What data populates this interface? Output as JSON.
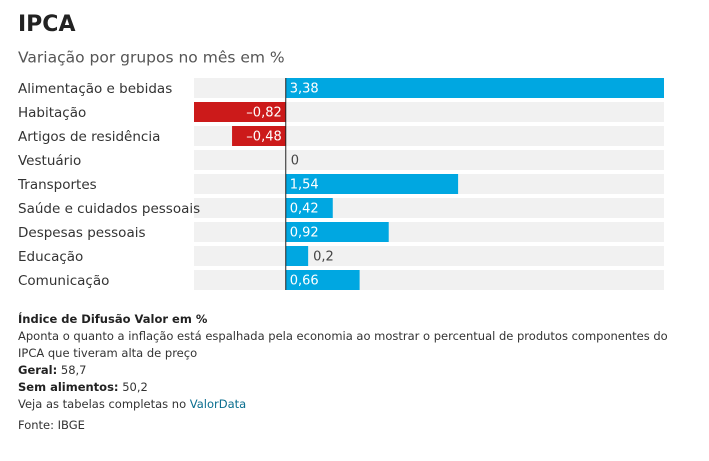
{
  "chart_data": {
    "type": "hbar",
    "title": "IPCA",
    "subtitle": "Variação por grupos no mês em %",
    "categories": [
      "Alimentação e bebidas",
      "Habitação",
      "Artigos de residência",
      "Vestuário",
      "Transportes",
      "Saúde e cuidados pessoais",
      "Despesas pessoais",
      "Educação",
      "Comunicação"
    ],
    "values": [
      3.38,
      -0.82,
      -0.48,
      0,
      1.54,
      0.42,
      0.92,
      0.2,
      0.66
    ],
    "value_labels": [
      "3,38",
      "–0,82",
      "–0,48",
      "0",
      "1,54",
      "0,42",
      "0,92",
      "0,2",
      "0,66"
    ],
    "positive_color": "#00a7e1",
    "negative_color": "#cc1a1a"
  },
  "notes": {
    "heading": "Índice de Difusão Valor em %",
    "description": "Aponta o quanto a inflação está espalhada pela economia ao mostrar o percentual de produtos componentes do IPCA que tiveram alta de preço",
    "general_label": "Geral:",
    "general_value": "58,7",
    "no_food_label": "Sem alimentos:",
    "no_food_value": "50,2",
    "link_text": "Veja as tabelas completas no",
    "link": "ValorData",
    "source": "Fonte: IBGE"
  }
}
